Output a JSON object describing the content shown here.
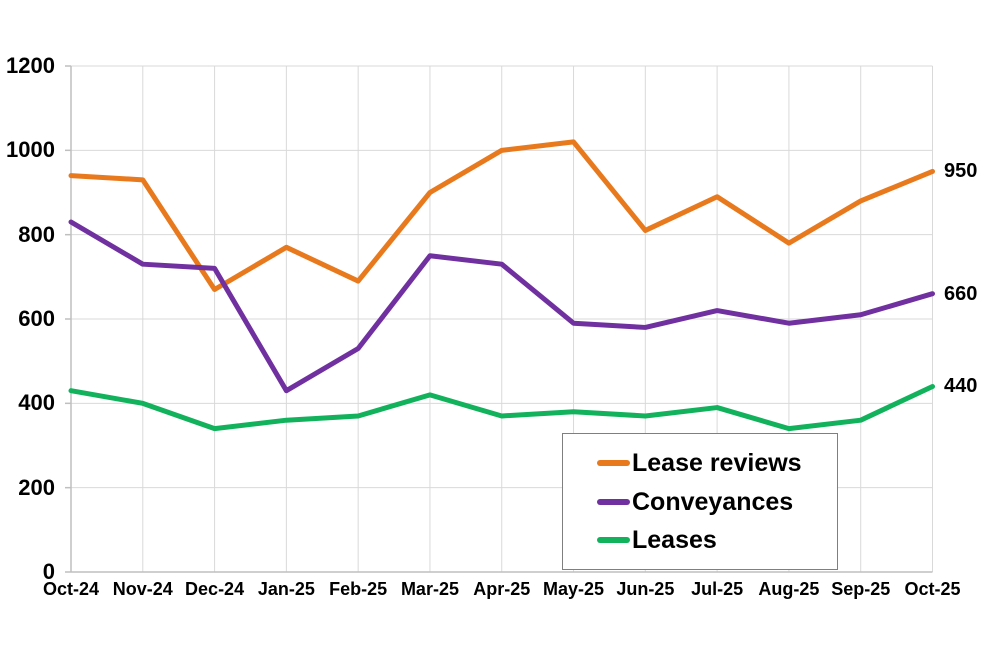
{
  "chart_data": {
    "type": "line",
    "categories": [
      "Oct-24",
      "Nov-24",
      "Dec-24",
      "Jan-25",
      "Feb-25",
      "Mar-25",
      "Apr-25",
      "May-25",
      "Jun-25",
      "Jul-25",
      "Aug-25",
      "Sep-25",
      "Oct-25"
    ],
    "series": [
      {
        "name": "Lease reviews",
        "color": "#E8791D",
        "end_label": "950",
        "values": [
          940,
          930,
          670,
          770,
          690,
          900,
          1000,
          1020,
          810,
          890,
          780,
          880,
          950
        ]
      },
      {
        "name": "Conveyances",
        "color": "#7030A0",
        "end_label": "660",
        "values": [
          830,
          730,
          720,
          430,
          530,
          750,
          730,
          590,
          580,
          620,
          590,
          610,
          660
        ]
      },
      {
        "name": "Leases",
        "color": "#12B25C",
        "end_label": "440",
        "values": [
          430,
          400,
          340,
          360,
          370,
          420,
          370,
          380,
          370,
          390,
          340,
          360,
          440
        ]
      }
    ],
    "y_ticks": [
      0,
      200,
      400,
      600,
      800,
      1000,
      1200
    ],
    "ylim": [
      0,
      1200
    ],
    "xlabel": "",
    "ylabel": "",
    "grid": true,
    "legend_position": "inside-bottom-right",
    "grid_color": "#D9D9D9",
    "axis_color": "#BFBFBF",
    "text_color": "#000000",
    "background": "#FFFFFF",
    "line_width": 5
  }
}
